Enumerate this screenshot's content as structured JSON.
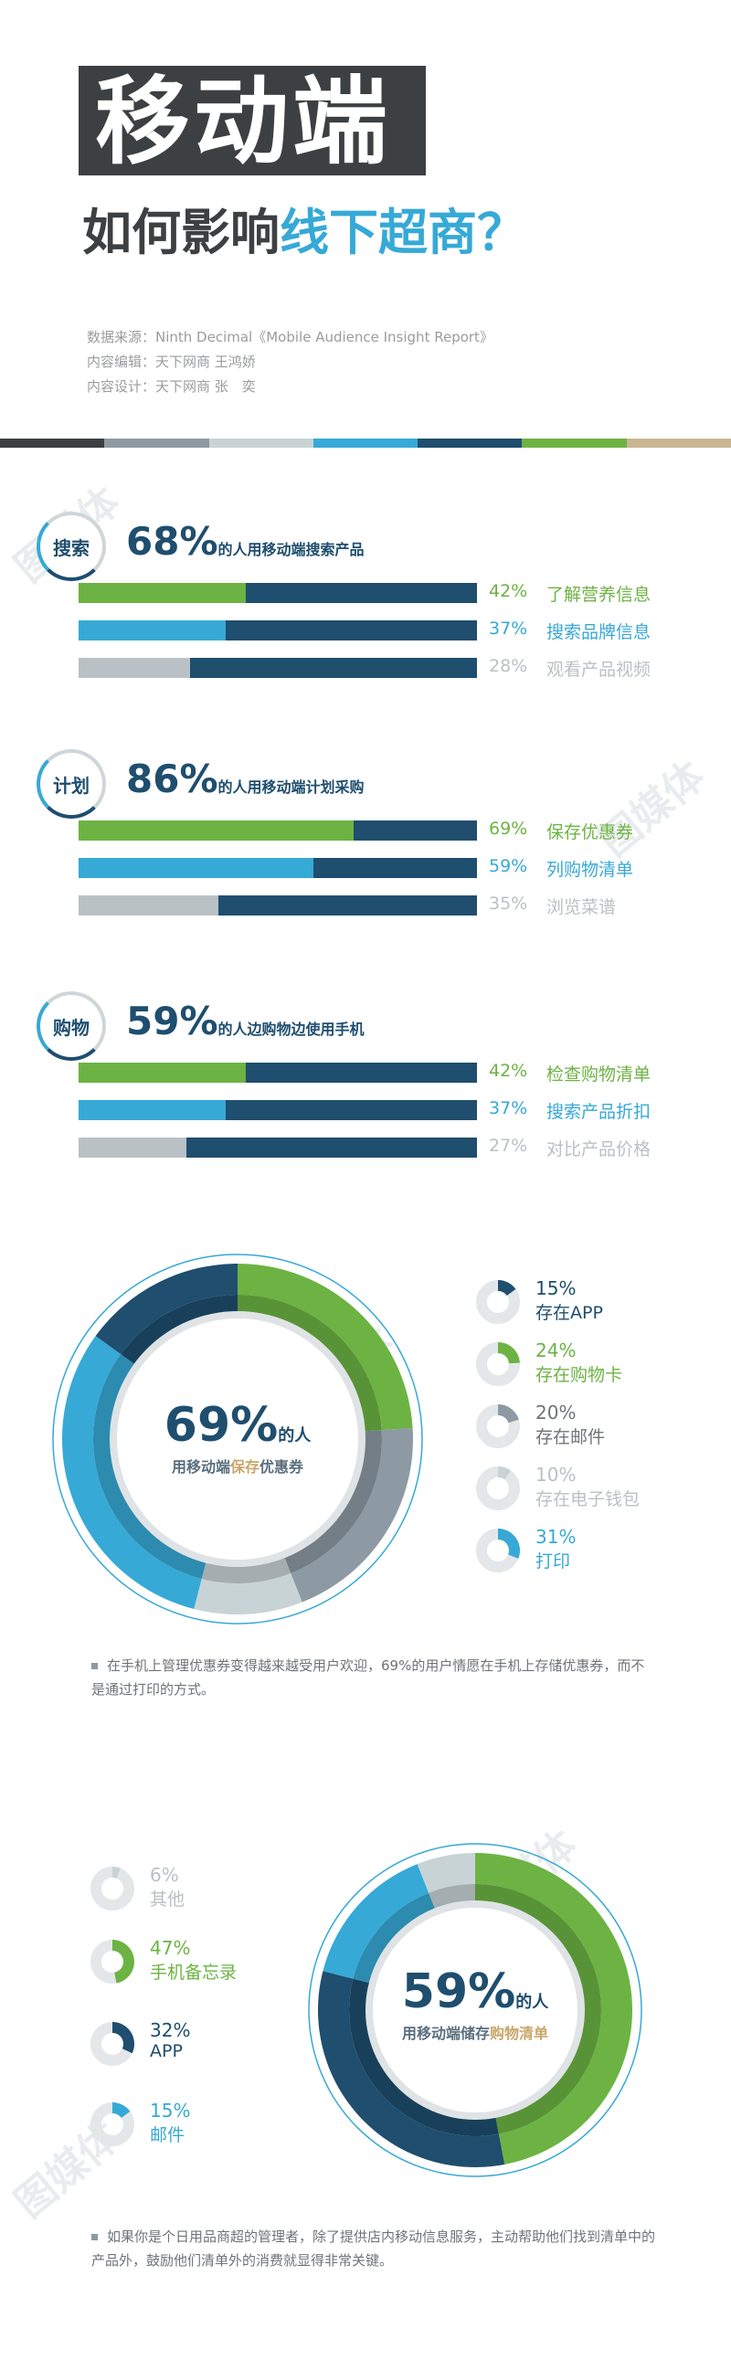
{
  "header": {
    "title_main": "移动端",
    "title_sub_a": "如何影响",
    "title_sub_b": "线下超商？",
    "source": "数据来源：Ninth Decimal《Mobile Audience Insight Report》",
    "editor": "内容编辑：天下网商 王鸿娇",
    "designer": "内容设计：天下网商 张　奕"
  },
  "watermark": "图媒体",
  "colors": {
    "navy": "#1f4e6e",
    "green": "#6cb343",
    "blue": "#36a9d6",
    "gray": "#c8d3d6",
    "lightgray": "#b9c1c4",
    "tan": "#c9b692",
    "dark": "#3d4043"
  },
  "sections": [
    {
      "badge": "搜索",
      "percent": "68%",
      "desc": "的人用移动端搜索产品",
      "bars": [
        {
          "value": 42,
          "pct": "42%",
          "label": "了解营养信息",
          "color": "green"
        },
        {
          "value": 37,
          "pct": "37%",
          "label": "搜索品牌信息",
          "color": "blue"
        },
        {
          "value": 28,
          "pct": "28%",
          "label": "观看产品视频",
          "color": "gray"
        }
      ]
    },
    {
      "badge": "计划",
      "percent": "86%",
      "desc": "的人用移动端计划采购",
      "bars": [
        {
          "value": 69,
          "pct": "69%",
          "label": "保存优惠券",
          "color": "green"
        },
        {
          "value": 59,
          "pct": "59%",
          "label": "列购物清单",
          "color": "blue"
        },
        {
          "value": 35,
          "pct": "35%",
          "label": "浏览菜谱",
          "color": "gray"
        }
      ]
    },
    {
      "badge": "购物",
      "percent": "59%",
      "desc": "的人边购物边使用手机",
      "bars": [
        {
          "value": 42,
          "pct": "42%",
          "label": "检查购物清单",
          "color": "green"
        },
        {
          "value": 37,
          "pct": "37%",
          "label": "搜索产品折扣",
          "color": "blue"
        },
        {
          "value": 27,
          "pct": "27%",
          "label": "对比产品价格",
          "color": "gray"
        }
      ]
    }
  ],
  "donut1": {
    "center_pct": "69%",
    "center_suffix": "的人",
    "center_line_a": "用移动端",
    "center_line_b": "保存",
    "center_line_c": "优惠券",
    "note": "在手机上管理优惠券变得越来越受用户欢迎，69%的用户情愿在手机上存储优惠券，而不是通过打印的方式。"
  },
  "donut2": {
    "center_pct": "59%",
    "center_suffix": "的人",
    "center_line_a": "用移动端储存",
    "center_line_b": "购物清单",
    "note": "如果你是个日用品商超的管理者，除了提供店内移动信息服务，主动帮助他们找到清单中的产品外，鼓励他们清单外的消费就显得非常关键。"
  },
  "chart_data": [
    {
      "type": "bar",
      "title": "68%的人用移动端搜索产品",
      "categories": [
        "了解营养信息",
        "搜索品牌信息",
        "观看产品视频"
      ],
      "values": [
        42,
        37,
        28
      ],
      "ylim": [
        0,
        100
      ]
    },
    {
      "type": "bar",
      "title": "86%的人用移动端计划采购",
      "categories": [
        "保存优惠券",
        "列购物清单",
        "浏览菜谱"
      ],
      "values": [
        69,
        59,
        35
      ],
      "ylim": [
        0,
        100
      ]
    },
    {
      "type": "bar",
      "title": "59%的人边购物边使用手机",
      "categories": [
        "检查购物清单",
        "搜索产品折扣",
        "对比产品价格"
      ],
      "values": [
        42,
        37,
        27
      ],
      "ylim": [
        0,
        100
      ]
    },
    {
      "type": "pie",
      "title": "69%的人用移动端保存优惠券",
      "categories": [
        "存在APP",
        "存在购物卡",
        "存在邮件",
        "存在电子钱包",
        "打印"
      ],
      "values": [
        15,
        24,
        20,
        10,
        31
      ],
      "colors": [
        "#1f4e6e",
        "#6cb343",
        "#8d9aa3",
        "#c8d3d6",
        "#36a9d6"
      ]
    },
    {
      "type": "pie",
      "title": "59%的人用移动端储存购物清单",
      "categories": [
        "其他",
        "手机备忘录",
        "APP",
        "邮件"
      ],
      "values": [
        6,
        47,
        32,
        15
      ],
      "colors": [
        "#c8d3d6",
        "#6cb343",
        "#1f4e6e",
        "#36a9d6"
      ]
    }
  ]
}
